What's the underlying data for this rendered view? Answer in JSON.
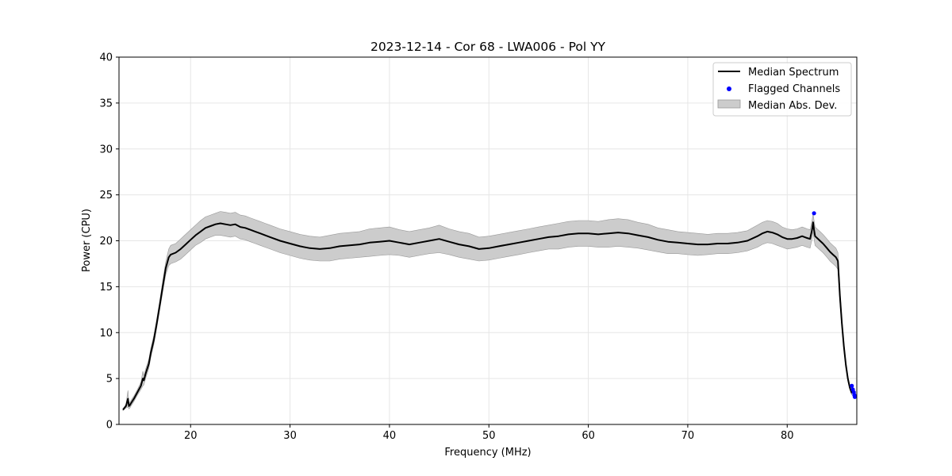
{
  "chart_data": {
    "type": "line",
    "title": "2023-12-14 - Cor 68 - LWA006 - Pol YY",
    "xlabel": "Frequency (MHz)",
    "ylabel": "Power (CPU)",
    "xlim": [
      12.8,
      87.0
    ],
    "ylim": [
      0,
      40
    ],
    "xticks": [
      20,
      30,
      40,
      50,
      60,
      70,
      80
    ],
    "yticks": [
      0,
      5,
      10,
      15,
      20,
      25,
      30,
      35,
      40
    ],
    "grid": true,
    "legend_position": "top-right",
    "series": [
      {
        "name": "Median Spectrum",
        "type": "line",
        "color": "#000000",
        "x": [
          13.2,
          13.5,
          13.7,
          13.8,
          13.9,
          14.0,
          14.3,
          14.6,
          15.0,
          15.2,
          15.3,
          15.5,
          15.8,
          16.0,
          16.3,
          16.6,
          16.9,
          17.2,
          17.5,
          17.8,
          18.0,
          18.5,
          19.0,
          19.5,
          20.0,
          20.5,
          21.0,
          21.5,
          22.0,
          22.5,
          23.0,
          23.5,
          24.0,
          24.5,
          25.0,
          25.5,
          26.0,
          26.5,
          27.0,
          27.5,
          28.0,
          29.0,
          30.0,
          31.0,
          32.0,
          33.0,
          34.0,
          35.0,
          36.0,
          37.0,
          38.0,
          39.0,
          40.0,
          41.0,
          42.0,
          43.0,
          44.0,
          45.0,
          46.0,
          47.0,
          48.0,
          49.0,
          50.0,
          51.0,
          52.0,
          53.0,
          54.0,
          55.0,
          56.0,
          57.0,
          58.0,
          59.0,
          60.0,
          61.0,
          62.0,
          63.0,
          64.0,
          65.0,
          66.0,
          67.0,
          68.0,
          69.0,
          70.0,
          71.0,
          72.0,
          73.0,
          74.0,
          75.0,
          76.0,
          77.0,
          77.5,
          78.0,
          78.5,
          79.0,
          79.5,
          80.0,
          80.5,
          81.0,
          81.5,
          82.0,
          82.3,
          82.5,
          82.6,
          82.7,
          82.8,
          83.0,
          83.3,
          83.6,
          84.0,
          84.3,
          84.6,
          84.9,
          85.1,
          85.3,
          85.5,
          85.7,
          85.9,
          86.1,
          86.3,
          86.5
        ],
        "y": [
          1.6,
          2.0,
          2.8,
          2.0,
          2.1,
          2.3,
          2.8,
          3.4,
          4.2,
          5.0,
          4.8,
          5.6,
          6.6,
          7.8,
          9.2,
          11.0,
          13.0,
          15.0,
          17.0,
          18.2,
          18.5,
          18.7,
          19.1,
          19.6,
          20.1,
          20.6,
          21.0,
          21.4,
          21.6,
          21.8,
          21.9,
          21.8,
          21.7,
          21.8,
          21.5,
          21.4,
          21.2,
          21.0,
          20.8,
          20.6,
          20.4,
          20.0,
          19.7,
          19.4,
          19.2,
          19.1,
          19.2,
          19.4,
          19.5,
          19.6,
          19.8,
          19.9,
          20.0,
          19.8,
          19.6,
          19.8,
          20.0,
          20.2,
          19.9,
          19.6,
          19.4,
          19.1,
          19.2,
          19.4,
          19.6,
          19.8,
          20.0,
          20.2,
          20.4,
          20.5,
          20.7,
          20.8,
          20.8,
          20.7,
          20.8,
          20.9,
          20.8,
          20.6,
          20.4,
          20.1,
          19.9,
          19.8,
          19.7,
          19.6,
          19.6,
          19.7,
          19.7,
          19.8,
          20.0,
          20.5,
          20.8,
          21.0,
          20.9,
          20.7,
          20.4,
          20.2,
          20.2,
          20.3,
          20.5,
          20.3,
          20.2,
          21.2,
          22.0,
          21.2,
          20.5,
          20.3,
          20.0,
          19.7,
          19.2,
          18.8,
          18.5,
          18.2,
          17.8,
          14.0,
          11.0,
          8.5,
          6.5,
          5.0,
          4.0,
          3.4
        ]
      },
      {
        "name": "Flagged Channels",
        "type": "scatter",
        "color": "#0000ff",
        "x": [
          82.7,
          86.5,
          86.6,
          86.7,
          86.75,
          86.8
        ],
        "y": [
          23.0,
          4.2,
          3.8,
          3.5,
          3.2,
          3.0
        ]
      },
      {
        "name": "Median Abs. Dev.",
        "type": "band",
        "color": "#cccccc",
        "edge_color": "#999999",
        "half_width": [
          0.1,
          0.2,
          0.9,
          0.3,
          0.3,
          0.3,
          0.3,
          0.3,
          0.4,
          0.8,
          0.5,
          0.5,
          0.5,
          0.5,
          0.5,
          0.5,
          0.5,
          0.6,
          0.7,
          0.9,
          1.0,
          1.0,
          1.1,
          1.1,
          1.1,
          1.1,
          1.2,
          1.2,
          1.2,
          1.2,
          1.3,
          1.3,
          1.3,
          1.3,
          1.3,
          1.3,
          1.3,
          1.3,
          1.3,
          1.3,
          1.3,
          1.3,
          1.3,
          1.3,
          1.3,
          1.3,
          1.4,
          1.4,
          1.4,
          1.4,
          1.5,
          1.5,
          1.5,
          1.4,
          1.4,
          1.4,
          1.4,
          1.5,
          1.4,
          1.4,
          1.4,
          1.3,
          1.3,
          1.3,
          1.3,
          1.3,
          1.3,
          1.3,
          1.3,
          1.4,
          1.4,
          1.4,
          1.4,
          1.4,
          1.5,
          1.5,
          1.5,
          1.4,
          1.4,
          1.3,
          1.3,
          1.2,
          1.2,
          1.2,
          1.1,
          1.1,
          1.1,
          1.1,
          1.1,
          1.2,
          1.2,
          1.2,
          1.2,
          1.2,
          1.1,
          1.1,
          1.0,
          1.0,
          1.0,
          1.0,
          1.0,
          1.0,
          1.0,
          1.0,
          1.0,
          1.0,
          1.0,
          1.0,
          1.0,
          1.0,
          1.0,
          1.0,
          0.9,
          0.7,
          0.5,
          0.4,
          0.3,
          0.3,
          0.2,
          0.2
        ]
      }
    ]
  }
}
